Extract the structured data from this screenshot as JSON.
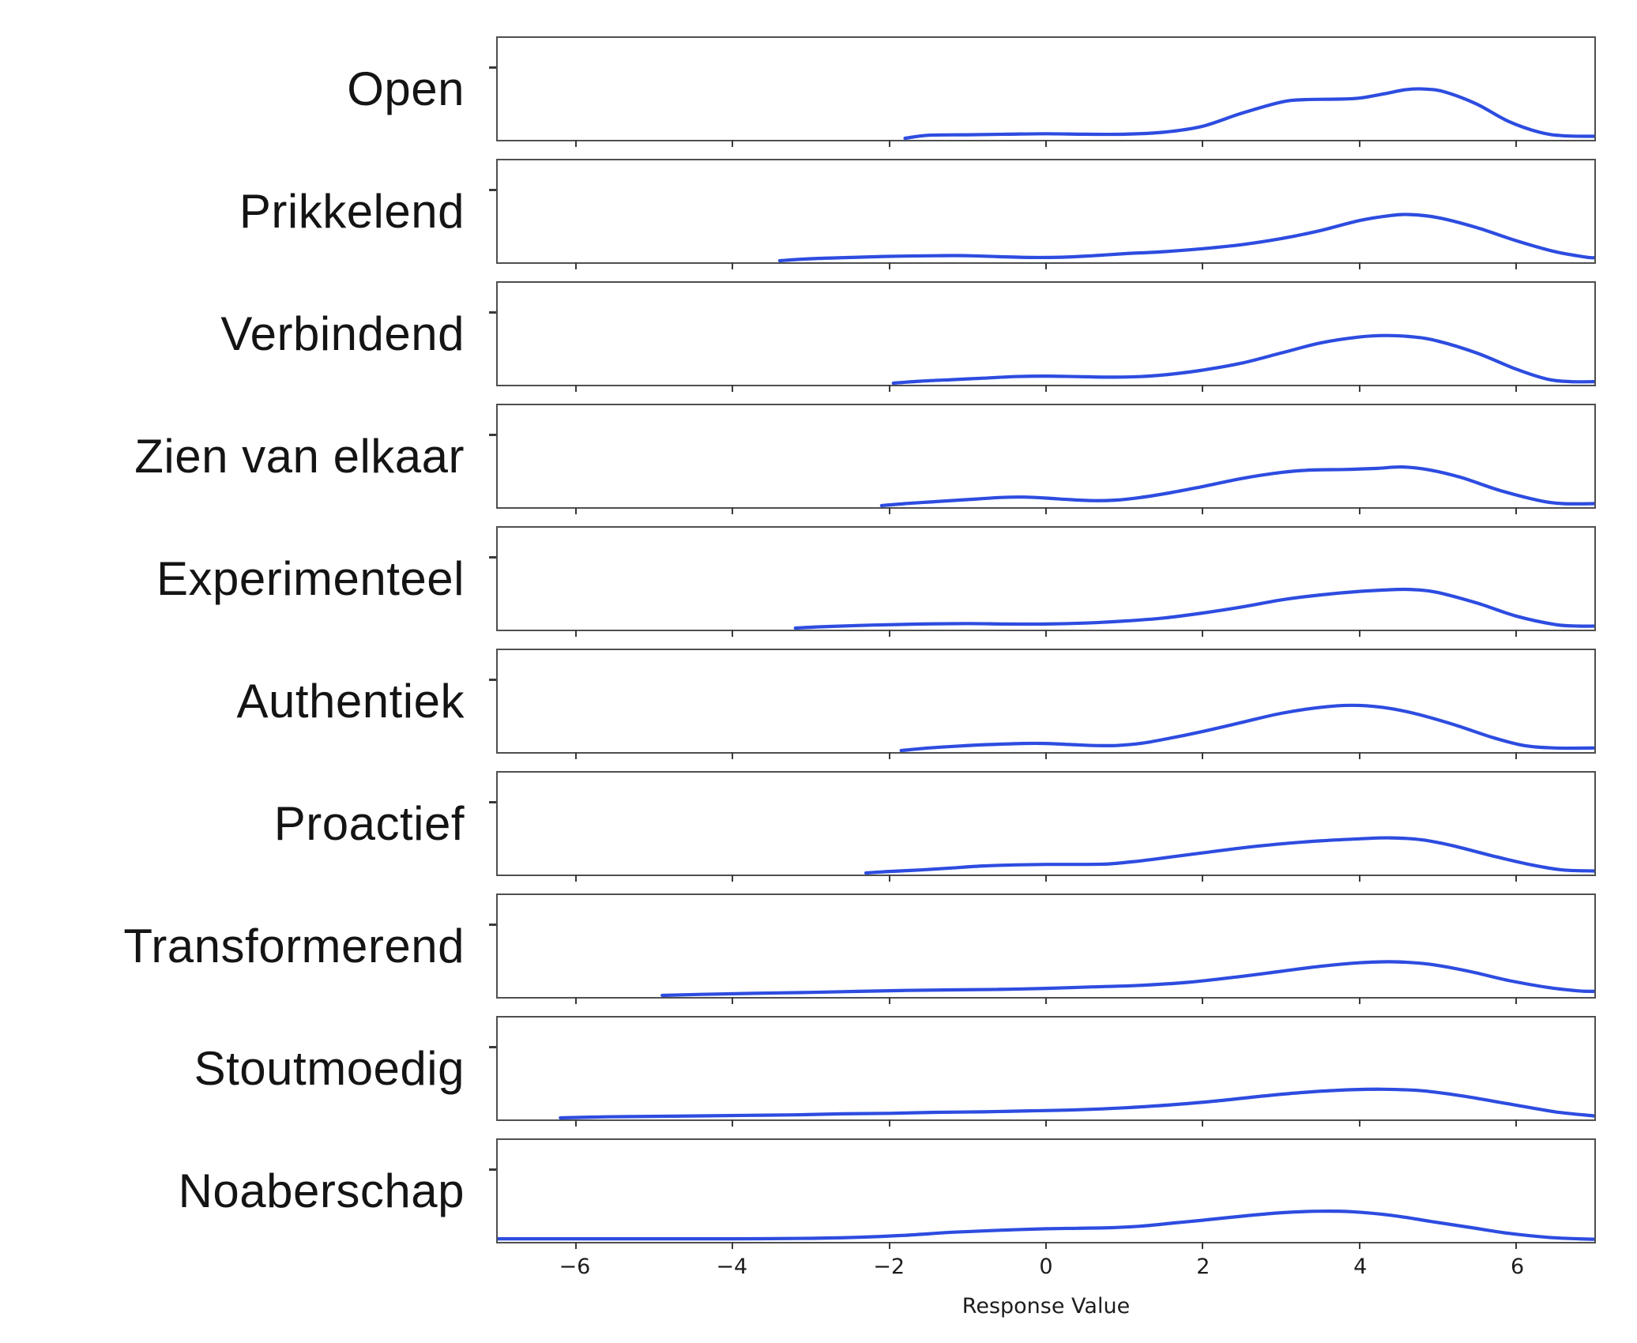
{
  "chart_data": {
    "type": "area",
    "subtype": "kde-ridgeline-small-multiples",
    "title": "",
    "xlabel": "Response Value",
    "ylabel": "",
    "xlim": [
      -7,
      7
    ],
    "grid": false,
    "legend_position": "none",
    "x_ticks": [
      -6,
      -4,
      -2,
      0,
      2,
      4,
      6
    ],
    "x_tick_labels": [
      "−6",
      "−4",
      "−2",
      "0",
      "2",
      "4",
      "6"
    ],
    "line_color": "#2d4ce0",
    "series": [
      {
        "label": "Open",
        "points": [
          [
            -1.8,
            0.0
          ],
          [
            -1.5,
            0.03
          ],
          [
            -1.0,
            0.035
          ],
          [
            -0.5,
            0.04
          ],
          [
            0,
            0.045
          ],
          [
            0.5,
            0.04
          ],
          [
            1.0,
            0.04
          ],
          [
            1.5,
            0.06
          ],
          [
            2.0,
            0.12
          ],
          [
            2.5,
            0.25
          ],
          [
            3.0,
            0.36
          ],
          [
            3.3,
            0.385
          ],
          [
            3.7,
            0.39
          ],
          [
            4.0,
            0.4
          ],
          [
            4.3,
            0.44
          ],
          [
            4.6,
            0.485
          ],
          [
            4.85,
            0.49
          ],
          [
            5.1,
            0.46
          ],
          [
            5.5,
            0.34
          ],
          [
            5.9,
            0.17
          ],
          [
            6.3,
            0.06
          ],
          [
            6.6,
            0.025
          ],
          [
            7.0,
            0.02
          ]
        ]
      },
      {
        "label": "Prikkelend",
        "points": [
          [
            -3.4,
            0.0
          ],
          [
            -3.0,
            0.02
          ],
          [
            -2.4,
            0.035
          ],
          [
            -1.9,
            0.045
          ],
          [
            -1.4,
            0.05
          ],
          [
            -1.0,
            0.05
          ],
          [
            -0.6,
            0.04
          ],
          [
            -0.2,
            0.032
          ],
          [
            0.2,
            0.035
          ],
          [
            0.6,
            0.05
          ],
          [
            1.0,
            0.07
          ],
          [
            1.5,
            0.09
          ],
          [
            2.0,
            0.12
          ],
          [
            2.5,
            0.16
          ],
          [
            3.0,
            0.22
          ],
          [
            3.5,
            0.3
          ],
          [
            4.0,
            0.4
          ],
          [
            4.4,
            0.45
          ],
          [
            4.65,
            0.46
          ],
          [
            5.0,
            0.43
          ],
          [
            5.5,
            0.33
          ],
          [
            6.0,
            0.2
          ],
          [
            6.5,
            0.09
          ],
          [
            6.9,
            0.035
          ],
          [
            7.0,
            0.03
          ]
        ]
      },
      {
        "label": "Verbindend",
        "points": [
          [
            -1.95,
            0.0
          ],
          [
            -1.6,
            0.02
          ],
          [
            -1.2,
            0.035
          ],
          [
            -0.8,
            0.05
          ],
          [
            -0.4,
            0.065
          ],
          [
            0,
            0.07
          ],
          [
            0.4,
            0.065
          ],
          [
            0.8,
            0.06
          ],
          [
            1.2,
            0.065
          ],
          [
            1.6,
            0.09
          ],
          [
            2.0,
            0.13
          ],
          [
            2.5,
            0.2
          ],
          [
            3.0,
            0.3
          ],
          [
            3.5,
            0.4
          ],
          [
            4.0,
            0.46
          ],
          [
            4.35,
            0.475
          ],
          [
            4.7,
            0.46
          ],
          [
            5.0,
            0.42
          ],
          [
            5.5,
            0.3
          ],
          [
            6.0,
            0.14
          ],
          [
            6.4,
            0.04
          ],
          [
            6.7,
            0.015
          ],
          [
            7.0,
            0.015
          ]
        ]
      },
      {
        "label": "Zien van elkaar",
        "points": [
          [
            -2.1,
            0.0
          ],
          [
            -1.8,
            0.02
          ],
          [
            -1.4,
            0.04
          ],
          [
            -1.0,
            0.06
          ],
          [
            -0.6,
            0.08
          ],
          [
            -0.3,
            0.085
          ],
          [
            0,
            0.075
          ],
          [
            0.3,
            0.06
          ],
          [
            0.6,
            0.05
          ],
          [
            0.9,
            0.055
          ],
          [
            1.2,
            0.08
          ],
          [
            1.6,
            0.13
          ],
          [
            2.0,
            0.19
          ],
          [
            2.5,
            0.27
          ],
          [
            3.0,
            0.33
          ],
          [
            3.4,
            0.355
          ],
          [
            3.8,
            0.36
          ],
          [
            4.2,
            0.37
          ],
          [
            4.55,
            0.385
          ],
          [
            4.9,
            0.355
          ],
          [
            5.3,
            0.28
          ],
          [
            5.8,
            0.15
          ],
          [
            6.3,
            0.05
          ],
          [
            6.6,
            0.02
          ],
          [
            7.0,
            0.02
          ]
        ]
      },
      {
        "label": "Experimenteel",
        "points": [
          [
            -3.2,
            0.0
          ],
          [
            -2.8,
            0.015
          ],
          [
            -2.2,
            0.03
          ],
          [
            -1.6,
            0.04
          ],
          [
            -1.0,
            0.045
          ],
          [
            -0.5,
            0.04
          ],
          [
            0,
            0.04
          ],
          [
            0.5,
            0.05
          ],
          [
            1.0,
            0.07
          ],
          [
            1.5,
            0.1
          ],
          [
            2.0,
            0.15
          ],
          [
            2.5,
            0.21
          ],
          [
            3.0,
            0.28
          ],
          [
            3.5,
            0.33
          ],
          [
            4.0,
            0.365
          ],
          [
            4.5,
            0.385
          ],
          [
            4.75,
            0.38
          ],
          [
            5.0,
            0.355
          ],
          [
            5.5,
            0.25
          ],
          [
            6.0,
            0.12
          ],
          [
            6.5,
            0.035
          ],
          [
            6.8,
            0.02
          ],
          [
            7.0,
            0.02
          ]
        ]
      },
      {
        "label": "Authentiek",
        "points": [
          [
            -1.85,
            0.0
          ],
          [
            -1.5,
            0.025
          ],
          [
            -1.1,
            0.045
          ],
          [
            -0.7,
            0.06
          ],
          [
            -0.3,
            0.07
          ],
          [
            0,
            0.07
          ],
          [
            0.3,
            0.06
          ],
          [
            0.6,
            0.05
          ],
          [
            0.9,
            0.05
          ],
          [
            1.2,
            0.07
          ],
          [
            1.5,
            0.11
          ],
          [
            2.0,
            0.19
          ],
          [
            2.5,
            0.28
          ],
          [
            3.0,
            0.37
          ],
          [
            3.5,
            0.43
          ],
          [
            3.9,
            0.45
          ],
          [
            4.3,
            0.43
          ],
          [
            4.7,
            0.37
          ],
          [
            5.2,
            0.26
          ],
          [
            5.7,
            0.13
          ],
          [
            6.1,
            0.05
          ],
          [
            6.5,
            0.025
          ],
          [
            7.0,
            0.025
          ]
        ]
      },
      {
        "label": "Proactief",
        "points": [
          [
            -2.3,
            0.0
          ],
          [
            -2.0,
            0.015
          ],
          [
            -1.6,
            0.03
          ],
          [
            -1.2,
            0.05
          ],
          [
            -0.8,
            0.07
          ],
          [
            -0.4,
            0.08
          ],
          [
            0,
            0.085
          ],
          [
            0.4,
            0.085
          ],
          [
            0.8,
            0.09
          ],
          [
            1.2,
            0.12
          ],
          [
            1.6,
            0.16
          ],
          [
            2.0,
            0.2
          ],
          [
            2.5,
            0.25
          ],
          [
            3.0,
            0.29
          ],
          [
            3.5,
            0.32
          ],
          [
            4.0,
            0.34
          ],
          [
            4.4,
            0.35
          ],
          [
            4.8,
            0.33
          ],
          [
            5.2,
            0.27
          ],
          [
            5.7,
            0.17
          ],
          [
            6.2,
            0.08
          ],
          [
            6.6,
            0.03
          ],
          [
            7.0,
            0.02
          ]
        ]
      },
      {
        "label": "Transformerend",
        "points": [
          [
            -4.9,
            0.0
          ],
          [
            -4.4,
            0.01
          ],
          [
            -3.8,
            0.02
          ],
          [
            -3.0,
            0.03
          ],
          [
            -2.4,
            0.04
          ],
          [
            -1.8,
            0.05
          ],
          [
            -1.2,
            0.055
          ],
          [
            -0.6,
            0.06
          ],
          [
            0,
            0.07
          ],
          [
            0.6,
            0.085
          ],
          [
            1.2,
            0.1
          ],
          [
            1.8,
            0.13
          ],
          [
            2.4,
            0.18
          ],
          [
            3.0,
            0.24
          ],
          [
            3.5,
            0.29
          ],
          [
            4.0,
            0.325
          ],
          [
            4.45,
            0.335
          ],
          [
            4.9,
            0.31
          ],
          [
            5.4,
            0.24
          ],
          [
            5.9,
            0.15
          ],
          [
            6.4,
            0.08
          ],
          [
            6.8,
            0.045
          ],
          [
            7.0,
            0.04
          ]
        ]
      },
      {
        "label": "Stoutmoedig",
        "points": [
          [
            -6.2,
            0.0
          ],
          [
            -5.6,
            0.01
          ],
          [
            -5.0,
            0.015
          ],
          [
            -4.4,
            0.02
          ],
          [
            -3.8,
            0.025
          ],
          [
            -3.2,
            0.03
          ],
          [
            -2.6,
            0.04
          ],
          [
            -2.0,
            0.045
          ],
          [
            -1.4,
            0.055
          ],
          [
            -0.8,
            0.06
          ],
          [
            -0.2,
            0.07
          ],
          [
            0.4,
            0.08
          ],
          [
            1.0,
            0.1
          ],
          [
            1.6,
            0.13
          ],
          [
            2.2,
            0.17
          ],
          [
            2.8,
            0.22
          ],
          [
            3.4,
            0.26
          ],
          [
            3.9,
            0.28
          ],
          [
            4.3,
            0.285
          ],
          [
            4.8,
            0.27
          ],
          [
            5.3,
            0.22
          ],
          [
            5.9,
            0.14
          ],
          [
            6.5,
            0.06
          ],
          [
            7.0,
            0.02
          ]
        ]
      },
      {
        "label": "Noaberschap",
        "points": [
          [
            -7.0,
            0.015
          ],
          [
            -6.0,
            0.015
          ],
          [
            -5.0,
            0.015
          ],
          [
            -4.0,
            0.015
          ],
          [
            -3.0,
            0.02
          ],
          [
            -2.4,
            0.03
          ],
          [
            -1.8,
            0.05
          ],
          [
            -1.2,
            0.08
          ],
          [
            -0.6,
            0.1
          ],
          [
            0,
            0.115
          ],
          [
            0.4,
            0.12
          ],
          [
            0.8,
            0.125
          ],
          [
            1.2,
            0.14
          ],
          [
            1.6,
            0.17
          ],
          [
            2.0,
            0.2
          ],
          [
            2.5,
            0.24
          ],
          [
            3.0,
            0.275
          ],
          [
            3.5,
            0.29
          ],
          [
            3.9,
            0.285
          ],
          [
            4.4,
            0.25
          ],
          [
            4.9,
            0.19
          ],
          [
            5.4,
            0.13
          ],
          [
            5.9,
            0.07
          ],
          [
            6.4,
            0.03
          ],
          [
            6.8,
            0.015
          ],
          [
            7.0,
            0.01
          ]
        ]
      }
    ]
  },
  "colors": {
    "curve": "#2d4ce0",
    "spine": "#4f4f4f",
    "tick": "#3a3a3a",
    "label_text": "#141414",
    "axis_text": "#1d1d1d",
    "background": "#ffffff"
  }
}
